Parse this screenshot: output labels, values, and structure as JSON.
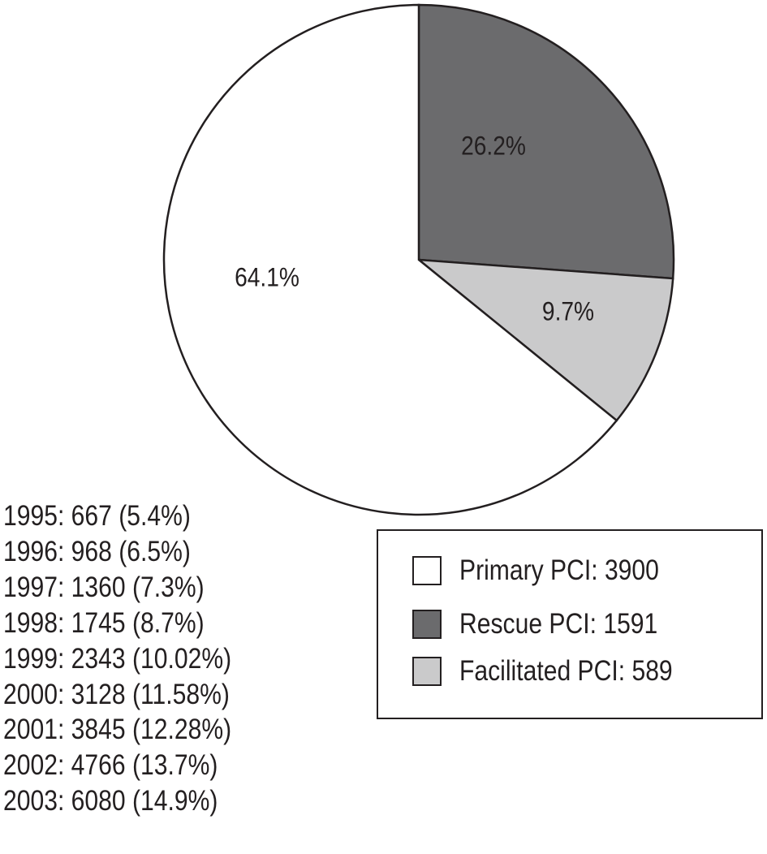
{
  "chart_data": {
    "type": "pie",
    "slices": [
      {
        "name": "Rescue PCI",
        "value": 1591,
        "percent_label": "26.2%",
        "color": "#6b6b6d"
      },
      {
        "name": "Facilitated PCI",
        "value": 589,
        "percent_label": "9.7%",
        "color": "#cacacb"
      },
      {
        "name": "Primary PCI",
        "value": 3900,
        "percent_label": "64.1%",
        "color": "#ffffff"
      }
    ],
    "start_angle_deg": 0,
    "direction": "clockwise",
    "legend": {
      "placement": "bottom-right",
      "entries": [
        {
          "label": "Primary PCI: 3900",
          "color": "#ffffff"
        },
        {
          "label": "Rescue PCI: 1591",
          "color": "#6b6b6d"
        },
        {
          "label": "Facilitated PCI: 589",
          "color": "#cacacb"
        }
      ]
    },
    "annotations": [
      "1995: 667 (5.4%)",
      "1996: 968 (6.5%)",
      "1997: 1360 (7.3%)",
      "1998: 1745 (8.7%)",
      "1999: 2343 (10.02%)",
      "2000: 3128 (11.58%)",
      "2001: 3845 (12.28%)",
      "2002: 4766 (13.7%)",
      "2003: 6080 (14.9%)"
    ]
  }
}
